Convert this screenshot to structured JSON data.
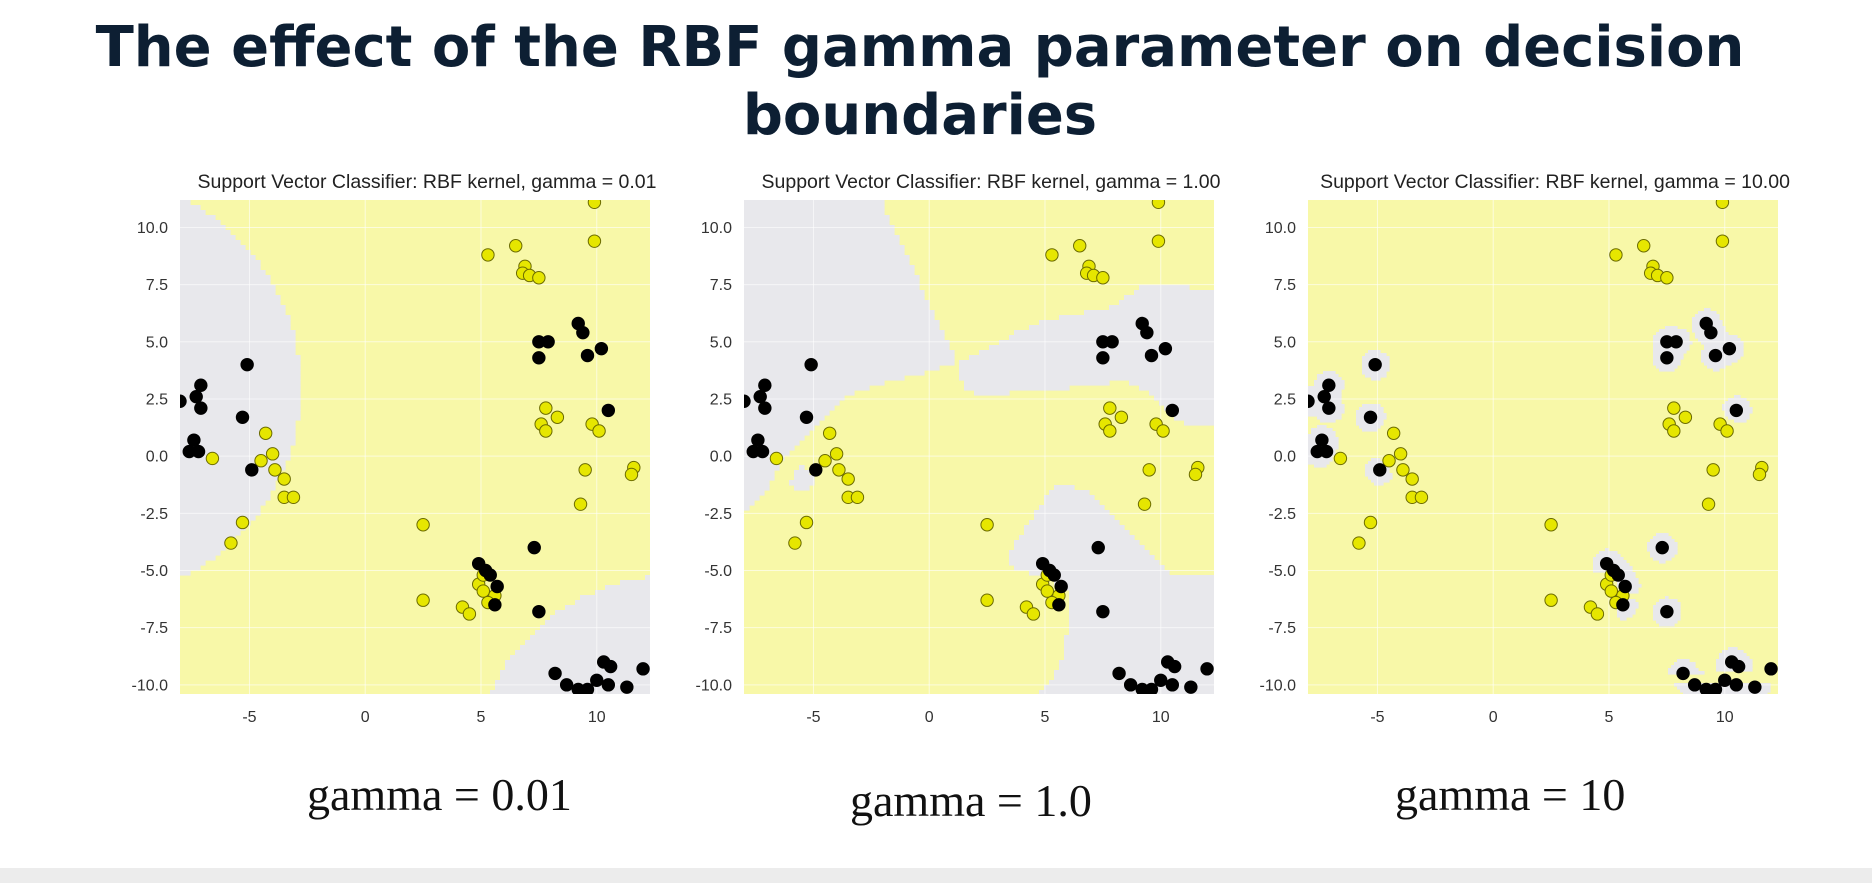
{
  "slide": {
    "title_line1": "The effect of the RBF gamma parameter on decision",
    "title_line2": "boundaries"
  },
  "captions": [
    "gamma = 0.01",
    "gamma = 1.0",
    "gamma = 10"
  ],
  "colors": {
    "yellow_region": "#f8f8a8",
    "gray_region": "#e8e8ec",
    "class_yellow": "#e6e600",
    "class_black": "#000000"
  },
  "chart_data": [
    {
      "type": "scatter",
      "title": "Support Vector Classifier: RBF kernel, gamma = 0.01",
      "gamma": 0.01,
      "xlim": [
        -8,
        12.3
      ],
      "ylim": [
        -10.4,
        11.2
      ],
      "xticks": [
        -5,
        0,
        5,
        10
      ],
      "yticks": [
        10.0,
        7.5,
        5.0,
        2.5,
        0.0,
        -2.5,
        -5.0,
        -7.5,
        -10.0
      ],
      "xtick_labels": [
        "-5",
        "0",
        "5",
        "10"
      ],
      "ytick_labels": [
        "10.0",
        "7.5",
        "5.0",
        "2.5",
        "0.0",
        "-2.5",
        "-5.0",
        "-7.5",
        "-10.0"
      ],
      "grid": true
    },
    {
      "type": "scatter",
      "title": "Support Vector Classifier: RBF kernel, gamma = 1.00",
      "gamma": 1.0,
      "xlim": [
        -8,
        12.3
      ],
      "ylim": [
        -10.4,
        11.2
      ],
      "xticks": [
        -5,
        0,
        5,
        10
      ],
      "yticks": [
        10.0,
        7.5,
        5.0,
        2.5,
        0.0,
        -2.5,
        -5.0,
        -7.5,
        -10.0
      ],
      "xtick_labels": [
        "-5",
        "0",
        "5",
        "10"
      ],
      "ytick_labels": [
        "10.0",
        "7.5",
        "5.0",
        "2.5",
        "0.0",
        "-2.5",
        "-5.0",
        "-7.5",
        "-10.0"
      ],
      "grid": true
    },
    {
      "type": "scatter",
      "title": "Support Vector Classifier: RBF kernel, gamma = 10.00",
      "gamma": 10.0,
      "xlim": [
        -8,
        12.3
      ],
      "ylim": [
        -10.4,
        11.2
      ],
      "xticks": [
        -5,
        0,
        5,
        10
      ],
      "yticks": [
        10.0,
        7.5,
        5.0,
        2.5,
        0.0,
        -2.5,
        -5.0,
        -7.5,
        -10.0
      ],
      "xtick_labels": [
        "-5",
        "0",
        "5",
        "10"
      ],
      "ytick_labels": [
        "10.0",
        "7.5",
        "5.0",
        "2.5",
        "0.0",
        "-2.5",
        "-5.0",
        "-7.5",
        "-10.0"
      ],
      "grid": true
    }
  ],
  "points": {
    "black": [
      [
        -8,
        2.4
      ],
      [
        -7.3,
        2.6
      ],
      [
        -7.1,
        3.1
      ],
      [
        -7.1,
        2.1
      ],
      [
        -7.4,
        0.7
      ],
      [
        -7.6,
        0.2
      ],
      [
        -7.2,
        0.2
      ],
      [
        -5.3,
        1.7
      ],
      [
        -5.1,
        4.0
      ],
      [
        -4.9,
        -0.6
      ],
      [
        7.5,
        5.0
      ],
      [
        7.5,
        4.3
      ],
      [
        7.9,
        5.0
      ],
      [
        9.2,
        5.8
      ],
      [
        9.4,
        5.4
      ],
      [
        9.6,
        4.4
      ],
      [
        10.2,
        4.7
      ],
      [
        10.5,
        2.0
      ],
      [
        7.3,
        -4.0
      ],
      [
        7.5,
        -6.8
      ],
      [
        4.9,
        -4.7
      ],
      [
        5.2,
        -5.0
      ],
      [
        5.4,
        -5.2
      ],
      [
        5.7,
        -5.7
      ],
      [
        5.6,
        -6.5
      ],
      [
        8.2,
        -9.5
      ],
      [
        8.7,
        -10.0
      ],
      [
        9.2,
        -10.2
      ],
      [
        9.6,
        -10.2
      ],
      [
        10.0,
        -9.8
      ],
      [
        10.3,
        -9.0
      ],
      [
        10.6,
        -9.2
      ],
      [
        10.5,
        -10.0
      ],
      [
        11.3,
        -10.1
      ],
      [
        12.0,
        -9.3
      ]
    ],
    "yellow": [
      [
        -6.6,
        -0.1
      ],
      [
        -4.3,
        1.0
      ],
      [
        -4.5,
        -0.2
      ],
      [
        -4.0,
        0.1
      ],
      [
        -3.9,
        -0.6
      ],
      [
        -3.5,
        -1.0
      ],
      [
        -3.5,
        -1.8
      ],
      [
        -3.1,
        -1.8
      ],
      [
        -5.3,
        -2.9
      ],
      [
        -5.8,
        -3.8
      ],
      [
        5.3,
        8.8
      ],
      [
        6.5,
        9.2
      ],
      [
        6.9,
        8.3
      ],
      [
        6.8,
        8.0
      ],
      [
        7.1,
        7.9
      ],
      [
        7.5,
        7.8
      ],
      [
        9.9,
        11.1
      ],
      [
        9.9,
        9.4
      ],
      [
        7.8,
        2.1
      ],
      [
        7.6,
        1.4
      ],
      [
        8.3,
        1.7
      ],
      [
        7.8,
        1.1
      ],
      [
        9.8,
        1.4
      ],
      [
        10.1,
        1.1
      ],
      [
        9.5,
        -0.6
      ],
      [
        9.3,
        -2.1
      ],
      [
        11.6,
        -0.5
      ],
      [
        11.5,
        -0.8
      ],
      [
        2.5,
        -3.0
      ],
      [
        2.5,
        -6.3
      ],
      [
        4.2,
        -6.6
      ],
      [
        4.5,
        -6.9
      ],
      [
        4.9,
        -5.6
      ],
      [
        5.1,
        -5.9
      ],
      [
        5.6,
        -6.1
      ],
      [
        5.3,
        -6.4
      ],
      [
        5.1,
        -5.2
      ]
    ]
  }
}
